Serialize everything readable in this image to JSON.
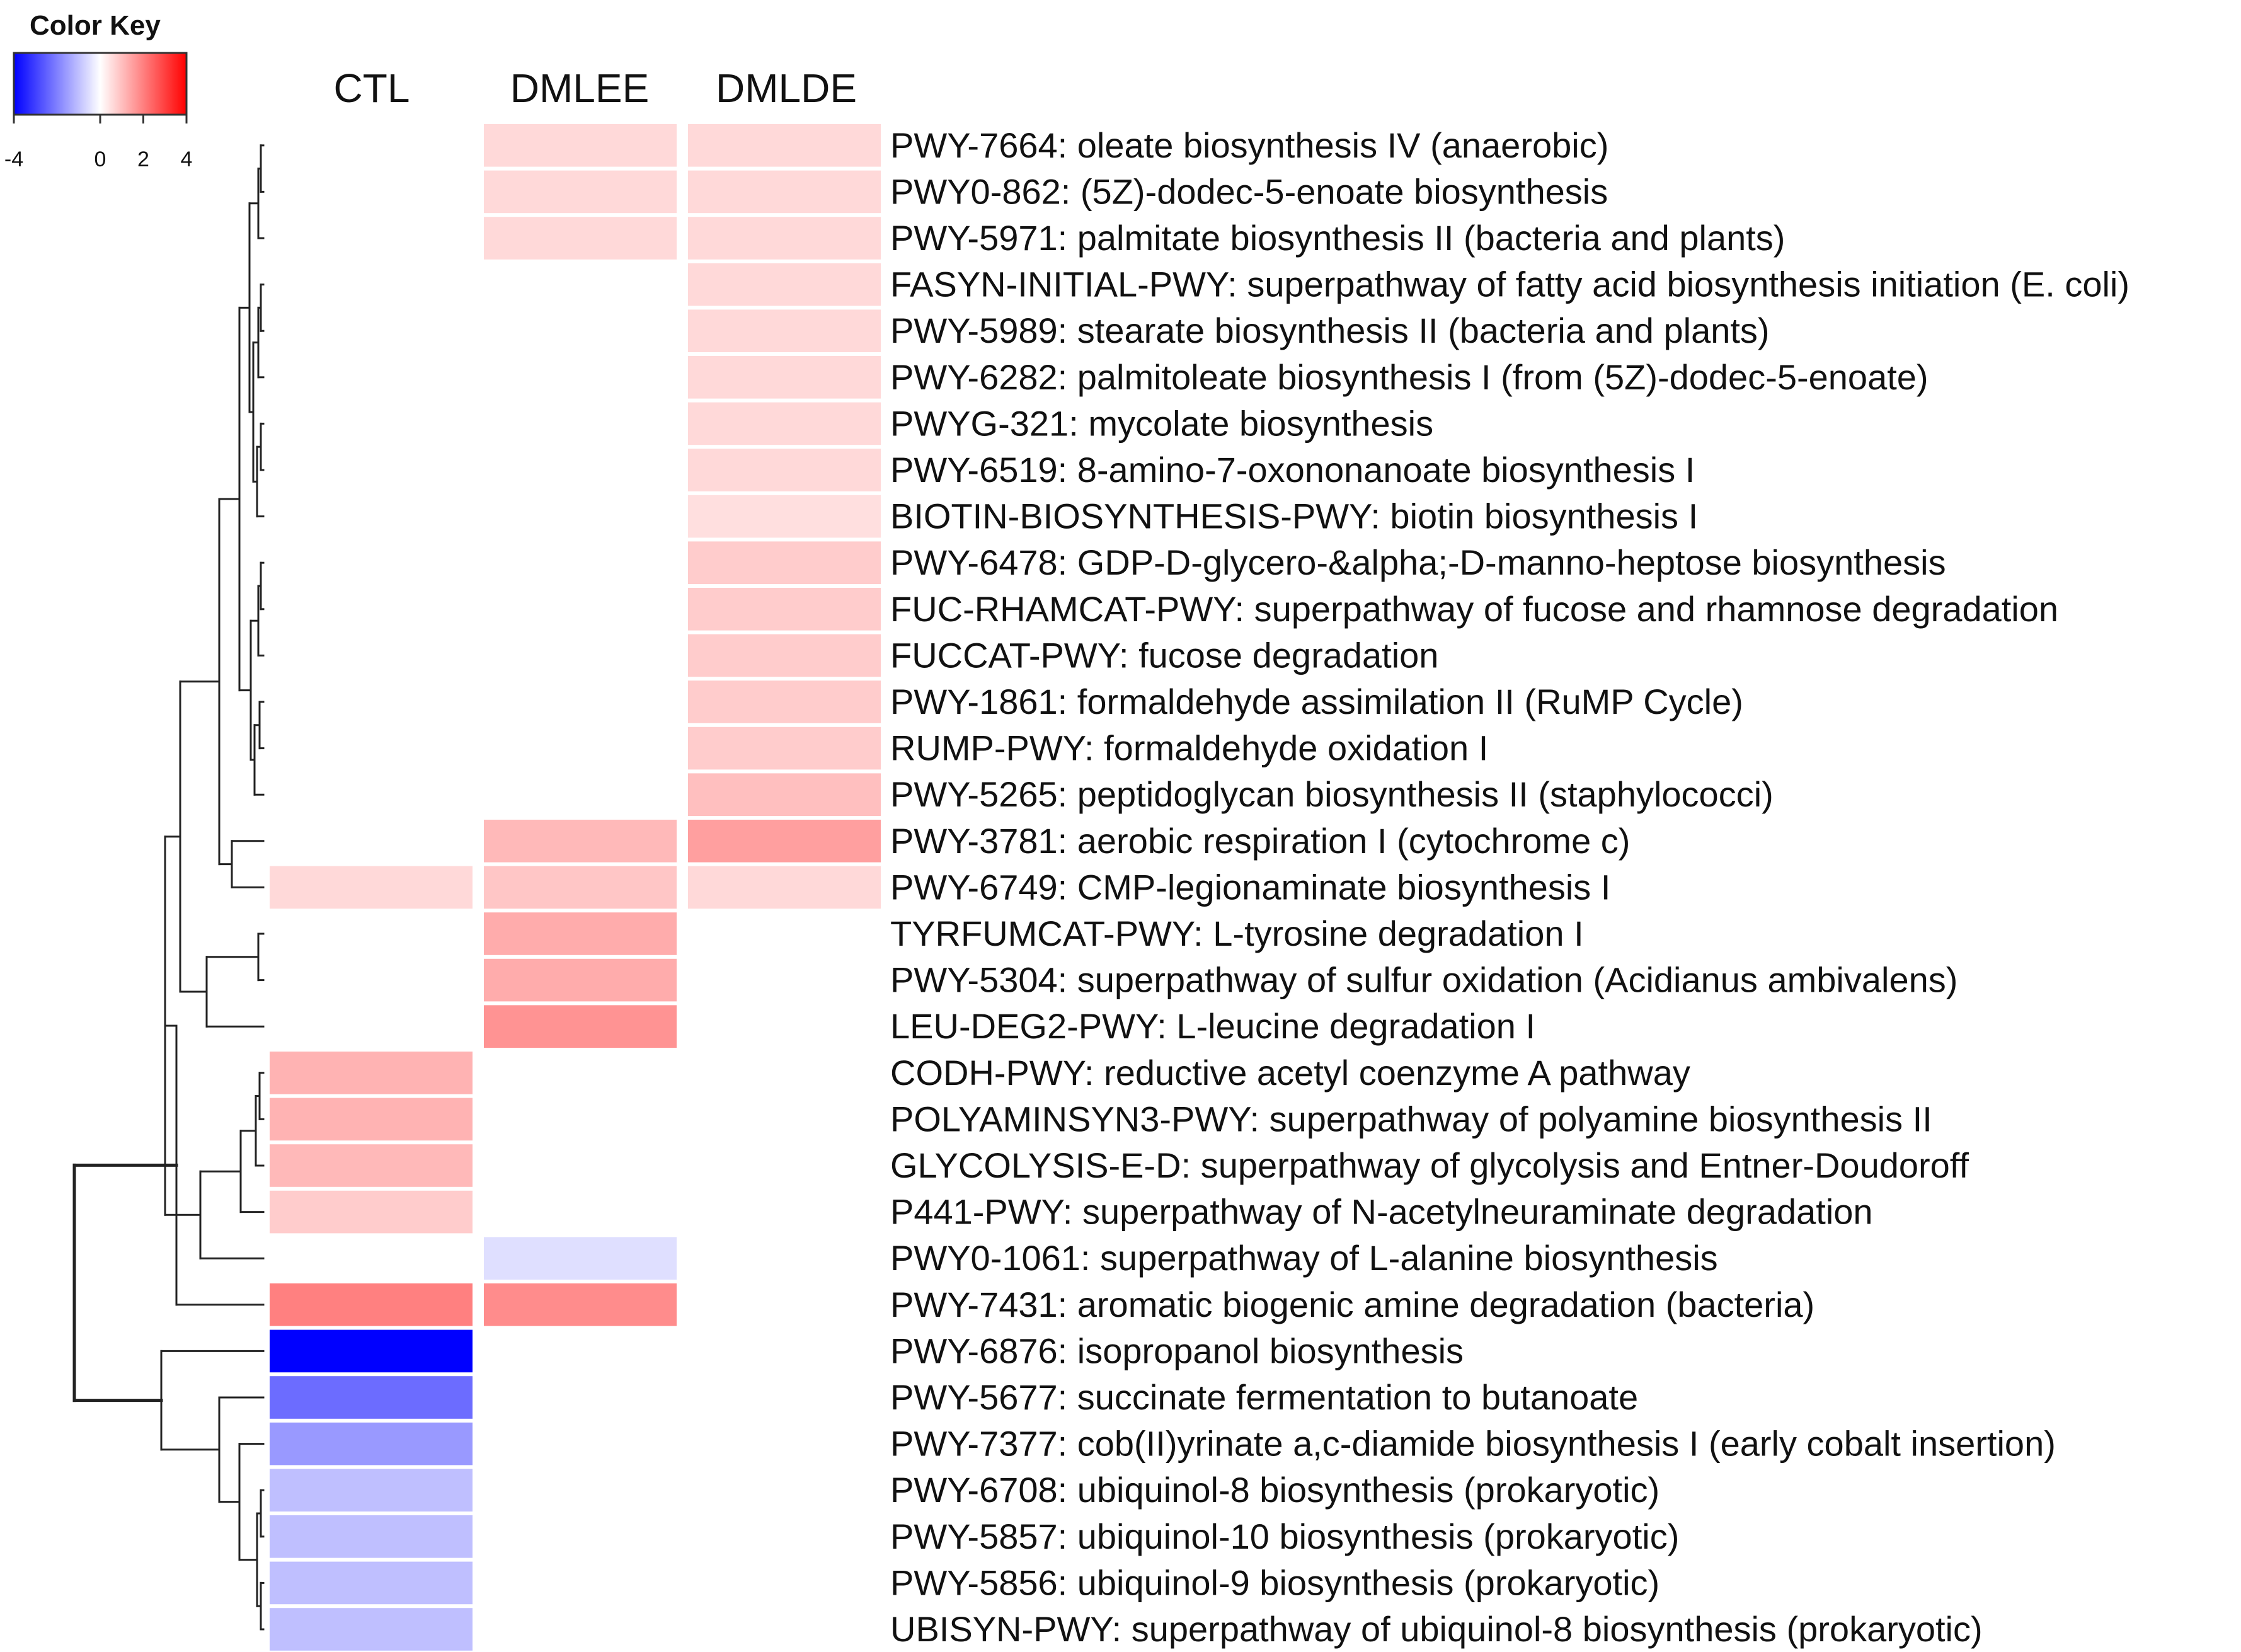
{
  "chart_data": {
    "type": "heatmap",
    "title": "",
    "color_key": {
      "title": "Color Key",
      "range": [
        -4,
        4
      ],
      "ticks": [
        -4,
        0,
        2,
        4
      ],
      "low_color": "#0000ff",
      "mid_color": "#ffffff",
      "high_color": "#ff0000"
    },
    "columns": [
      "CTL",
      "DMLEE",
      "DMLDE"
    ],
    "rows": [
      {
        "label": "PWY-7664: oleate biosynthesis IV (anaerobic)",
        "values": [
          null,
          0.6,
          0.6
        ]
      },
      {
        "label": "PWY0-862: (5Z)-dodec-5-enoate biosynthesis",
        "values": [
          null,
          0.6,
          0.6
        ]
      },
      {
        "label": "PWY-5971: palmitate biosynthesis II (bacteria and plants)",
        "values": [
          null,
          0.6,
          0.6
        ]
      },
      {
        "label": "FASYN-INITIAL-PWY: superpathway of fatty acid biosynthesis initiation (E. coli)",
        "values": [
          null,
          null,
          0.6
        ]
      },
      {
        "label": "PWY-5989: stearate biosynthesis II (bacteria and plants)",
        "values": [
          null,
          null,
          0.6
        ]
      },
      {
        "label": "PWY-6282: palmitoleate biosynthesis I (from (5Z)-dodec-5-enoate)",
        "values": [
          null,
          null,
          0.6
        ]
      },
      {
        "label": "PWYG-321: mycolate biosynthesis",
        "values": [
          null,
          null,
          0.6
        ]
      },
      {
        "label": "PWY-6519: 8-amino-7-oxononanoate biosynthesis I",
        "values": [
          null,
          null,
          0.6
        ]
      },
      {
        "label": "BIOTIN-BIOSYNTHESIS-PWY: biotin biosynthesis I",
        "values": [
          null,
          null,
          0.5
        ]
      },
      {
        "label": "PWY-6478: GDP-D-glycero-&alpha;-D-manno-heptose biosynthesis",
        "values": [
          null,
          null,
          0.8
        ]
      },
      {
        "label": "FUC-RHAMCAT-PWY: superpathway of fucose and rhamnose degradation",
        "values": [
          null,
          null,
          0.8
        ]
      },
      {
        "label": "FUCCAT-PWY: fucose degradation",
        "values": [
          null,
          null,
          0.8
        ]
      },
      {
        "label": "PWY-1861: formaldehyde assimilation II (RuMP Cycle)",
        "values": [
          null,
          null,
          0.8
        ]
      },
      {
        "label": "RUMP-PWY: formaldehyde oxidation I",
        "values": [
          null,
          null,
          0.8
        ]
      },
      {
        "label": "PWY-5265: peptidoglycan biosynthesis II (staphylococci)",
        "values": [
          null,
          null,
          1.0
        ]
      },
      {
        "label": "PWY-3781: aerobic respiration I (cytochrome c)",
        "values": [
          null,
          1.1,
          1.5
        ]
      },
      {
        "label": "PWY-6749: CMP-legionaminate biosynthesis I",
        "values": [
          0.6,
          0.9,
          0.6
        ]
      },
      {
        "label": "TYRFUMCAT-PWY: L-tyrosine degradation I",
        "values": [
          null,
          1.3,
          null
        ]
      },
      {
        "label": "PWY-5304: superpathway of sulfur oxidation (Acidianus ambivalens)",
        "values": [
          null,
          1.3,
          null
        ]
      },
      {
        "label": "LEU-DEG2-PWY: L-leucine degradation I",
        "values": [
          null,
          1.7,
          null
        ]
      },
      {
        "label": "CODH-PWY: reductive acetyl coenzyme A pathway",
        "values": [
          1.2,
          null,
          null
        ]
      },
      {
        "label": "POLYAMINSYN3-PWY: superpathway of polyamine biosynthesis II",
        "values": [
          1.2,
          null,
          null
        ]
      },
      {
        "label": "GLYCOLYSIS-E-D: superpathway of glycolysis and Entner-Doudoroff",
        "values": [
          1.1,
          null,
          null
        ]
      },
      {
        "label": "P441-PWY: superpathway of N-acetylneuraminate degradation",
        "values": [
          0.8,
          null,
          null
        ]
      },
      {
        "label": "PWY0-1061: superpathway of L-alanine biosynthesis",
        "values": [
          null,
          -0.5,
          null
        ]
      },
      {
        "label": "PWY-7431: aromatic biogenic amine degradation (bacteria)",
        "values": [
          2.0,
          1.8,
          null
        ]
      },
      {
        "label": "PWY-6876: isopropanol biosynthesis",
        "values": [
          -4.0,
          null,
          null
        ]
      },
      {
        "label": "PWY-5677: succinate fermentation to butanoate",
        "values": [
          -2.3,
          null,
          null
        ]
      },
      {
        "label": "PWY-7377: cob(II)yrinate a,c-diamide biosynthesis I (early cobalt insertion)",
        "values": [
          -1.6,
          null,
          null
        ]
      },
      {
        "label": "PWY-6708: ubiquinol-8 biosynthesis (prokaryotic)",
        "values": [
          -1.0,
          null,
          null
        ]
      },
      {
        "label": "PWY-5857: ubiquinol-10 biosynthesis (prokaryotic)",
        "values": [
          -1.0,
          null,
          null
        ]
      },
      {
        "label": "PWY-5856: ubiquinol-9 biosynthesis (prokaryotic)",
        "values": [
          -1.0,
          null,
          null
        ]
      },
      {
        "label": "UBISYN-PWY: superpathway of ubiquinol-8 biosynthesis (prokaryotic)",
        "values": [
          -1.0,
          null,
          null
        ]
      }
    ],
    "xlabel": "",
    "ylabel": "",
    "legend": "top-left",
    "dendrogram": "rows"
  }
}
